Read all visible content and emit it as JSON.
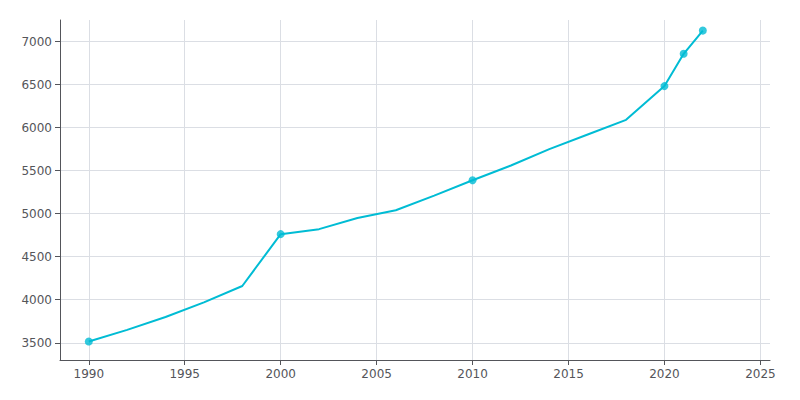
{
  "chart_data": {
    "type": "line",
    "grid": true,
    "xlim": [
      1988.5,
      2025.5
    ],
    "ylim": [
      3300,
      7250
    ],
    "xticks": [
      1990,
      1995,
      2000,
      2005,
      2010,
      2015,
      2020,
      2025
    ],
    "yticks": [
      3500,
      4000,
      4500,
      5000,
      5500,
      6000,
      6500,
      7000
    ],
    "series": [
      {
        "type": "line",
        "color": "#00bcd4",
        "x": [
          1990,
          1992,
          1994,
          1996,
          1998,
          2000,
          2002,
          2004,
          2006,
          2008,
          2010,
          2012,
          2014,
          2016,
          2018,
          2020,
          2021,
          2022
        ],
        "values": [
          3514,
          3650,
          3800,
          3970,
          4160,
          4762,
          4820,
          4950,
          5040,
          5210,
          5388,
          5560,
          5750,
          5920,
          6090,
          6482,
          6857,
          7127
        ]
      },
      {
        "type": "scatter",
        "color": "#00bcd4",
        "marker": "circle",
        "x": [
          1990,
          2000,
          2010,
          2020,
          2021,
          2022
        ],
        "values": [
          3514,
          4762,
          5388,
          6482,
          6857,
          7127
        ]
      }
    ]
  }
}
